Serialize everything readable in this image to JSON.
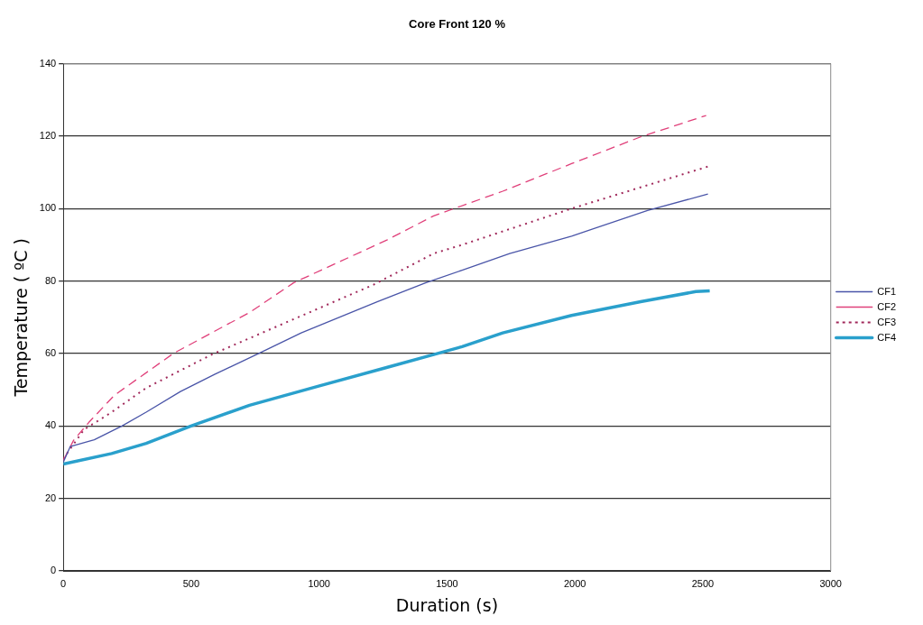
{
  "chart_data": {
    "type": "line",
    "title": "Core Front 120 %",
    "xlabel": "Duration (s)",
    "ylabel": "Temperature ( ºC )",
    "xlim": [
      0,
      3000
    ],
    "xticks": [
      0,
      500,
      1000,
      1500,
      2000,
      2500,
      3000
    ],
    "ylim": [
      0,
      140
    ],
    "yticks": [
      0,
      20,
      40,
      60,
      80,
      100,
      120,
      140
    ],
    "grid": "y",
    "legend": "right",
    "marker": "none",
    "series": [
      {
        "name": "CF1",
        "color": "#4a55a8",
        "line_style": "solid",
        "x": [
          0,
          27,
          121,
          229,
          324,
          458,
          593,
          755,
          930,
          1227,
          1416,
          1559,
          1745,
          1987,
          2284,
          2520
        ],
        "values": [
          30,
          34.3,
          36.2,
          40,
          43.8,
          49.5,
          54.3,
          59.7,
          65.7,
          74.3,
          79.5,
          83,
          87.6,
          92.4,
          99.5,
          104
        ]
      },
      {
        "name": "CF2",
        "color": "#e0407a",
        "line_style": "dashed",
        "x": [
          0,
          40,
          100,
          200,
          430,
          730,
          900,
          1267,
          1448,
          1718,
          1987,
          2257,
          2513
        ],
        "values": [
          30.5,
          36,
          41,
          48.5,
          60,
          71.4,
          79.5,
          91.4,
          98,
          104.8,
          112.4,
          119.8,
          125.7
        ]
      },
      {
        "name": "CF3",
        "color": "#a0285a",
        "line_style": "dotted",
        "x": [
          0,
          81,
          189,
          324,
          580,
          1213,
          1448,
          1559,
          1987,
          2520
        ],
        "values": [
          31,
          39,
          43.8,
          50.5,
          59.7,
          79,
          87.6,
          90,
          100,
          111.6
        ]
      },
      {
        "name": "CF4",
        "color": "#2aa0cc",
        "line_style": "solid",
        "x": [
          0,
          189,
          324,
          499,
          728,
          998,
          1267,
          1448,
          1559,
          1718,
          1987,
          2257,
          2473,
          2527
        ],
        "values": [
          29.5,
          32.4,
          35.2,
          40,
          45.7,
          51,
          56.2,
          59.7,
          61.9,
          65.7,
          70.5,
          74.3,
          77.1,
          77.3
        ]
      }
    ]
  }
}
